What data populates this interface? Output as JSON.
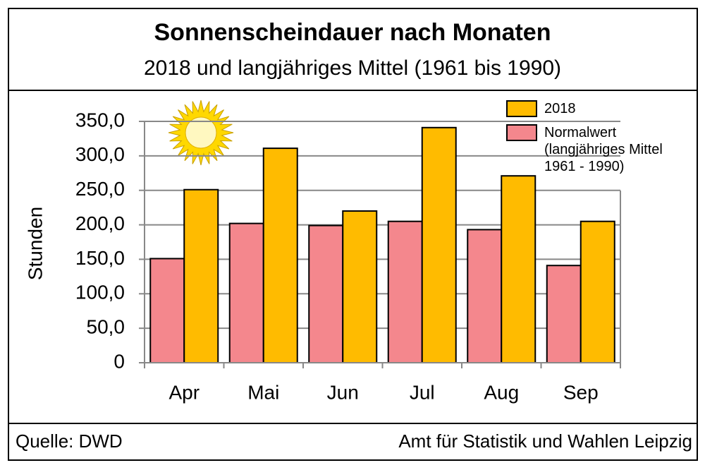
{
  "chart_data": {
    "type": "bar",
    "title": "Sonnenscheindauer nach Monaten",
    "subtitle": "2018 und langjähriges Mittel (1961 bis 1990)",
    "y_label": "Stunden",
    "source": "Quelle: DWD",
    "publisher": "Amt für Statistik und Wahlen Leipzig",
    "categories": [
      "Apr",
      "Mai",
      "Jun",
      "Jul",
      "Aug",
      "Sep"
    ],
    "series": [
      {
        "name": "Normalwert (langjähriges Mittel 1961 - 1990)",
        "color": "#f4878d",
        "values": [
          151,
          202,
          199,
          205,
          193,
          141
        ]
      },
      {
        "name": "2018",
        "color": "#ffbb00",
        "values": [
          251,
          311,
          220,
          341,
          271,
          205
        ]
      }
    ],
    "ylim": [
      0,
      350
    ],
    "yticks": [
      0,
      {
        "value": 50,
        "label": "50,0"
      },
      {
        "value": 100,
        "label": "100,0"
      },
      {
        "value": 150,
        "label": "150,0"
      },
      {
        "value": 200,
        "label": "200,0"
      },
      {
        "value": 250,
        "label": "250,0"
      },
      {
        "value": 300,
        "label": "300,0"
      },
      {
        "value": 350,
        "label": "350,0"
      }
    ],
    "grid": true
  }
}
